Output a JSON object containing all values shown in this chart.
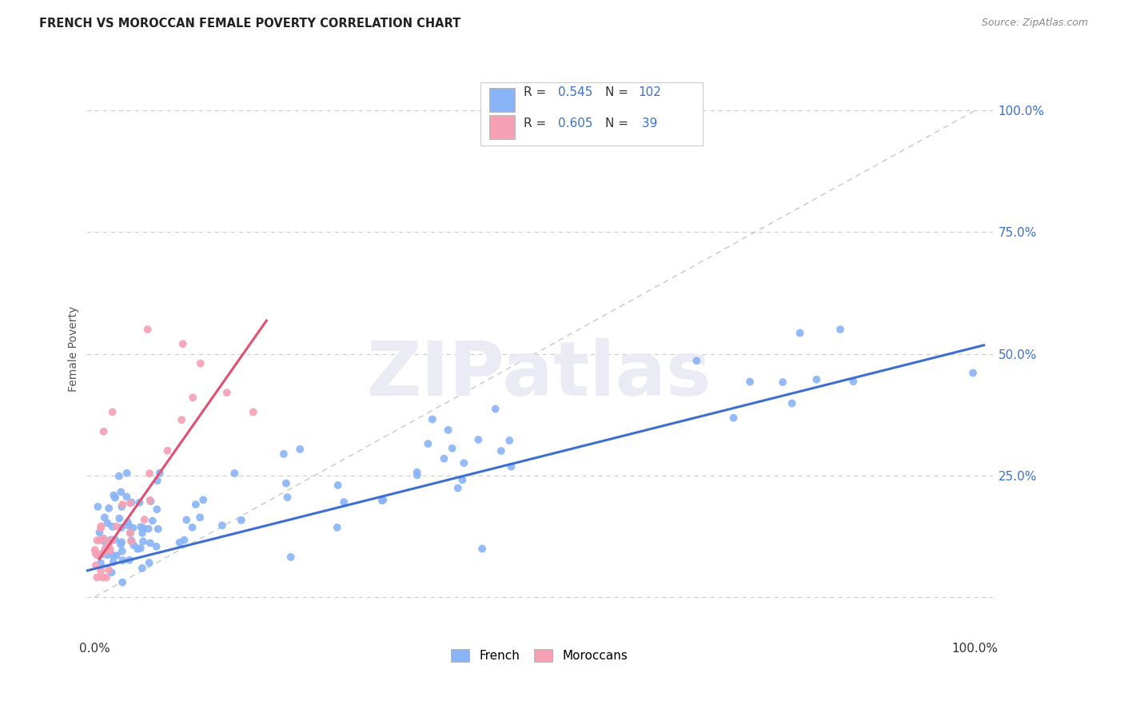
{
  "title": "FRENCH VS MOROCCAN FEMALE POVERTY CORRELATION CHART",
  "source": "Source: ZipAtlas.com",
  "ylabel": "Female Poverty",
  "xlim": [
    -0.01,
    1.02
  ],
  "ylim": [
    -0.08,
    1.1
  ],
  "ytick_positions_right": [
    1.0,
    0.75,
    0.5,
    0.25
  ],
  "ytick_labels_right": [
    "100.0%",
    "75.0%",
    "50.0%",
    "25.0%"
  ],
  "french_color": "#89b4f7",
  "moroccan_color": "#f5a0b5",
  "french_line_color": "#3d6fd1",
  "moroccan_line_color": "#e05070",
  "right_label_color": "#3d6fd1",
  "diagonal_color": "#c8c8c8",
  "grid_color": "#cccccc",
  "background_color": "#ffffff",
  "watermark": "ZIPatlas",
  "watermark_color": "#ebebf5",
  "legend_R_french": "0.545",
  "legend_N_french": "102",
  "legend_R_moroccan": "0.605",
  "legend_N_moroccan": " 39",
  "title_fontsize": 10.5,
  "source_fontsize": 9,
  "tick_fontsize": 11,
  "legend_fontsize": 11,
  "ylabel_fontsize": 10,
  "watermark_fontsize": 68
}
